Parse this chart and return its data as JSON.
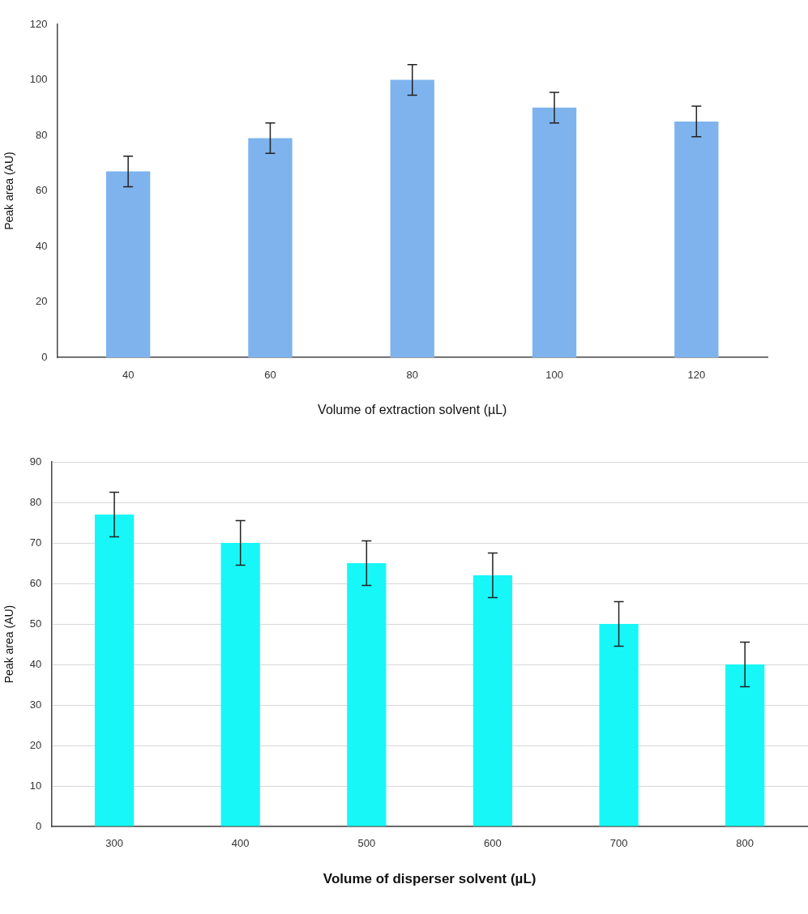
{
  "chart_data": [
    {
      "type": "bar",
      "categories": [
        "40",
        "60",
        "80",
        "100",
        "120"
      ],
      "values": [
        67,
        79,
        100,
        90,
        85
      ],
      "errors": [
        5.5,
        5.5,
        5.5,
        5.5,
        5.5
      ],
      "color": "#7eb3ee",
      "xlabel": "Volume of extraction solvent (µL)",
      "ylabel": "Peak area (AU)",
      "ylim": [
        0,
        120
      ],
      "yticks": [
        0,
        20,
        40,
        60,
        80,
        100,
        120
      ],
      "grid": false,
      "legend": false
    },
    {
      "type": "bar",
      "categories": [
        "300",
        "400",
        "500",
        "600",
        "700",
        "800"
      ],
      "values": [
        77,
        70,
        65,
        62,
        50,
        40
      ],
      "errors": [
        5.5,
        5.5,
        5.5,
        5.5,
        5.5,
        5.5
      ],
      "color": "#17f7f7",
      "xlabel": "Volume of disperser solvent (µL)",
      "ylabel": "Peak area (AU)",
      "ylim": [
        0,
        90
      ],
      "yticks": [
        0,
        10,
        20,
        30,
        40,
        50,
        60,
        70,
        80,
        90
      ],
      "grid": "y",
      "legend": false
    }
  ]
}
